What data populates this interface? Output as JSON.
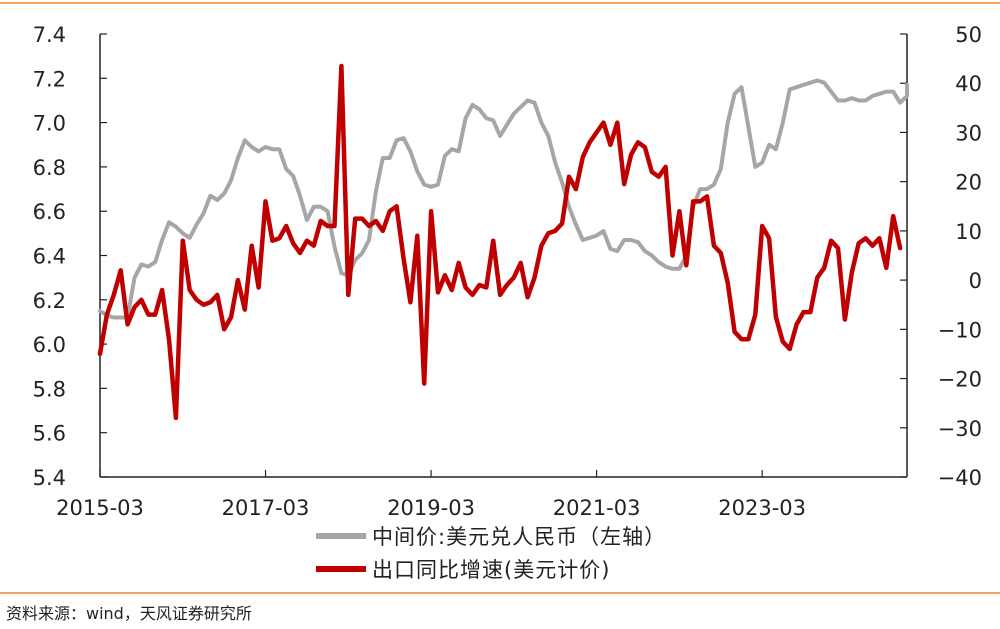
{
  "colors": {
    "rate_series": "#a6a6a6",
    "export_series": "#c00000",
    "rule": "#f4a460",
    "axis": "#222222"
  },
  "source_note": "资料来源：wind，天风证券研究所",
  "chart_data": {
    "type": "line",
    "title": "",
    "x_axis": {
      "type": "date",
      "range": [
        "2015-03",
        "2024-12"
      ],
      "tick_labels": [
        "2015-03",
        "2017-03",
        "2019-03",
        "2021-03",
        "2023-03"
      ]
    },
    "y_left": {
      "range": [
        5.4,
        7.4
      ],
      "tick_labels": [
        "5.4",
        "5.6",
        "5.8",
        "6.0",
        "6.2",
        "6.4",
        "6.6",
        "6.8",
        "7.0",
        "7.2",
        "7.4"
      ]
    },
    "y_right": {
      "range": [
        -40,
        50
      ],
      "tick_labels": [
        "−40",
        "−30",
        "−20",
        "−10",
        "0",
        "10",
        "20",
        "30",
        "40",
        "50"
      ]
    },
    "grid": false,
    "legend_position": "bottom",
    "series": [
      {
        "name": "中间价:美元兑人民币（左轴）",
        "axis": "left",
        "color": "#a6a6a6",
        "points": [
          [
            "2015-03",
            6.15
          ],
          [
            "2015-04",
            6.13
          ],
          [
            "2015-05",
            6.12
          ],
          [
            "2015-06",
            6.12
          ],
          [
            "2015-07",
            6.12
          ],
          [
            "2015-08",
            6.3
          ],
          [
            "2015-09",
            6.36
          ],
          [
            "2015-10",
            6.35
          ],
          [
            "2015-11",
            6.37
          ],
          [
            "2015-12",
            6.47
          ],
          [
            "2016-01",
            6.55
          ],
          [
            "2016-02",
            6.53
          ],
          [
            "2016-03",
            6.5
          ],
          [
            "2016-04",
            6.48
          ],
          [
            "2016-05",
            6.54
          ],
          [
            "2016-06",
            6.59
          ],
          [
            "2016-07",
            6.67
          ],
          [
            "2016-08",
            6.65
          ],
          [
            "2016-09",
            6.68
          ],
          [
            "2016-10",
            6.74
          ],
          [
            "2016-11",
            6.84
          ],
          [
            "2016-12",
            6.92
          ],
          [
            "2017-01",
            6.89
          ],
          [
            "2017-02",
            6.87
          ],
          [
            "2017-03",
            6.89
          ],
          [
            "2017-04",
            6.88
          ],
          [
            "2017-05",
            6.88
          ],
          [
            "2017-06",
            6.79
          ],
          [
            "2017-07",
            6.76
          ],
          [
            "2017-08",
            6.67
          ],
          [
            "2017-09",
            6.56
          ],
          [
            "2017-10",
            6.62
          ],
          [
            "2017-11",
            6.62
          ],
          [
            "2017-12",
            6.6
          ],
          [
            "2018-01",
            6.44
          ],
          [
            "2018-02",
            6.32
          ],
          [
            "2018-03",
            6.31
          ],
          [
            "2018-04",
            6.38
          ],
          [
            "2018-05",
            6.41
          ],
          [
            "2018-06",
            6.47
          ],
          [
            "2018-07",
            6.69
          ],
          [
            "2018-08",
            6.84
          ],
          [
            "2018-09",
            6.84
          ],
          [
            "2018-10",
            6.92
          ],
          [
            "2018-11",
            6.93
          ],
          [
            "2018-12",
            6.87
          ],
          [
            "2019-01",
            6.78
          ],
          [
            "2019-02",
            6.72
          ],
          [
            "2019-03",
            6.71
          ],
          [
            "2019-04",
            6.72
          ],
          [
            "2019-05",
            6.85
          ],
          [
            "2019-06",
            6.88
          ],
          [
            "2019-07",
            6.87
          ],
          [
            "2019-08",
            7.02
          ],
          [
            "2019-09",
            7.08
          ],
          [
            "2019-10",
            7.06
          ],
          [
            "2019-11",
            7.02
          ],
          [
            "2019-12",
            7.01
          ],
          [
            "2020-01",
            6.94
          ],
          [
            "2020-02",
            6.99
          ],
          [
            "2020-03",
            7.04
          ],
          [
            "2020-04",
            7.07
          ],
          [
            "2020-05",
            7.1
          ],
          [
            "2020-06",
            7.09
          ],
          [
            "2020-07",
            7.0
          ],
          [
            "2020-08",
            6.94
          ],
          [
            "2020-09",
            6.82
          ],
          [
            "2020-10",
            6.73
          ],
          [
            "2020-11",
            6.62
          ],
          [
            "2020-12",
            6.54
          ],
          [
            "2021-01",
            6.47
          ],
          [
            "2021-02",
            6.48
          ],
          [
            "2021-03",
            6.49
          ],
          [
            "2021-04",
            6.51
          ],
          [
            "2021-05",
            6.43
          ],
          [
            "2021-06",
            6.42
          ],
          [
            "2021-07",
            6.47
          ],
          [
            "2021-08",
            6.47
          ],
          [
            "2021-09",
            6.46
          ],
          [
            "2021-10",
            6.42
          ],
          [
            "2021-11",
            6.4
          ],
          [
            "2021-12",
            6.37
          ],
          [
            "2022-01",
            6.35
          ],
          [
            "2022-02",
            6.34
          ],
          [
            "2022-03",
            6.34
          ],
          [
            "2022-04",
            6.4
          ],
          [
            "2022-05",
            6.62
          ],
          [
            "2022-06",
            6.7
          ],
          [
            "2022-07",
            6.7
          ],
          [
            "2022-08",
            6.72
          ],
          [
            "2022-09",
            6.79
          ],
          [
            "2022-10",
            7.0
          ],
          [
            "2022-11",
            7.13
          ],
          [
            "2022-12",
            7.16
          ],
          [
            "2023-01",
            6.98
          ],
          [
            "2023-02",
            6.8
          ],
          [
            "2023-03",
            6.82
          ],
          [
            "2023-04",
            6.9
          ],
          [
            "2023-05",
            6.88
          ],
          [
            "2023-06",
            7.0
          ],
          [
            "2023-07",
            7.15
          ],
          [
            "2023-08",
            7.16
          ],
          [
            "2023-09",
            7.17
          ],
          [
            "2023-10",
            7.18
          ],
          [
            "2023-11",
            7.19
          ],
          [
            "2023-12",
            7.18
          ],
          [
            "2024-01",
            7.14
          ],
          [
            "2024-02",
            7.1
          ],
          [
            "2024-03",
            7.1
          ],
          [
            "2024-04",
            7.11
          ],
          [
            "2024-05",
            7.1
          ],
          [
            "2024-06",
            7.1
          ],
          [
            "2024-07",
            7.12
          ],
          [
            "2024-08",
            7.13
          ],
          [
            "2024-09",
            7.14
          ],
          [
            "2024-10",
            7.14
          ],
          [
            "2024-11",
            7.09
          ],
          [
            "2024-12",
            7.12
          ],
          [
            "2025-01",
            7.17
          ]
        ]
      },
      {
        "name": "出口同比增速(美元计价)",
        "axis": "right",
        "color": "#c00000",
        "points": [
          [
            "2015-03",
            -15.0
          ],
          [
            "2015-04",
            -7.0
          ],
          [
            "2015-05",
            -3.0
          ],
          [
            "2015-06",
            2.0
          ],
          [
            "2015-07",
            -9.0
          ],
          [
            "2015-08",
            -5.5
          ],
          [
            "2015-09",
            -4.0
          ],
          [
            "2015-10",
            -7.0
          ],
          [
            "2015-11",
            -7.0
          ],
          [
            "2015-12",
            -2.0
          ],
          [
            "2016-01",
            -12.0
          ],
          [
            "2016-02",
            -28.0
          ],
          [
            "2016-03",
            8.0
          ],
          [
            "2016-04",
            -2.0
          ],
          [
            "2016-05",
            -4.0
          ],
          [
            "2016-06",
            -5.0
          ],
          [
            "2016-07",
            -4.5
          ],
          [
            "2016-08",
            -3.0
          ],
          [
            "2016-09",
            -10.0
          ],
          [
            "2016-10",
            -7.5
          ],
          [
            "2016-11",
            0.0
          ],
          [
            "2016-12",
            -6.0
          ],
          [
            "2017-01",
            7.0
          ],
          [
            "2017-02",
            -1.5
          ],
          [
            "2017-03",
            16.0
          ],
          [
            "2017-04",
            8.0
          ],
          [
            "2017-05",
            8.5
          ],
          [
            "2017-06",
            11.0
          ],
          [
            "2017-07",
            7.5
          ],
          [
            "2017-08",
            5.5
          ],
          [
            "2017-09",
            8.0
          ],
          [
            "2017-10",
            7.0
          ],
          [
            "2017-11",
            12.0
          ],
          [
            "2017-12",
            11.0
          ],
          [
            "2018-01",
            11.0
          ],
          [
            "2018-02",
            43.5
          ],
          [
            "2018-03",
            -3.0
          ],
          [
            "2018-04",
            12.5
          ],
          [
            "2018-05",
            12.5
          ],
          [
            "2018-06",
            11.0
          ],
          [
            "2018-07",
            12.0
          ],
          [
            "2018-08",
            10.0
          ],
          [
            "2018-09",
            14.0
          ],
          [
            "2018-10",
            15.0
          ],
          [
            "2018-11",
            4.5
          ],
          [
            "2018-12",
            -4.5
          ],
          [
            "2019-01",
            9.0
          ],
          [
            "2019-02",
            -21.0
          ],
          [
            "2019-03",
            14.0
          ],
          [
            "2019-04",
            -2.5
          ],
          [
            "2019-05",
            1.0
          ],
          [
            "2019-06",
            -2.0
          ],
          [
            "2019-07",
            3.5
          ],
          [
            "2019-08",
            -1.5
          ],
          [
            "2019-09",
            -3.0
          ],
          [
            "2019-10",
            -1.0
          ],
          [
            "2019-11",
            -1.5
          ],
          [
            "2019-12",
            8.0
          ],
          [
            "2020-01",
            -3.0
          ],
          [
            "2020-02",
            -1.0
          ],
          [
            "2020-03",
            0.5
          ],
          [
            "2020-04",
            3.5
          ],
          [
            "2020-05",
            -3.5
          ],
          [
            "2020-06",
            0.5
          ],
          [
            "2020-07",
            7.0
          ],
          [
            "2020-08",
            9.5
          ],
          [
            "2020-09",
            10.0
          ],
          [
            "2020-10",
            11.5
          ],
          [
            "2020-11",
            21.0
          ],
          [
            "2020-12",
            18.5
          ],
          [
            "2021-01",
            25.0
          ],
          [
            "2021-02",
            28.0
          ],
          [
            "2021-03",
            30.0
          ],
          [
            "2021-04",
            32.0
          ],
          [
            "2021-05",
            27.5
          ],
          [
            "2021-06",
            32.0
          ],
          [
            "2021-07",
            19.5
          ],
          [
            "2021-08",
            25.5
          ],
          [
            "2021-09",
            28.0
          ],
          [
            "2021-10",
            27.0
          ],
          [
            "2021-11",
            22.0
          ],
          [
            "2021-12",
            21.0
          ],
          [
            "2022-01",
            23.0
          ],
          [
            "2022-02",
            5.0
          ],
          [
            "2022-03",
            14.0
          ],
          [
            "2022-04",
            3.0
          ],
          [
            "2022-05",
            16.0
          ],
          [
            "2022-06",
            16.0
          ],
          [
            "2022-07",
            17.0
          ],
          [
            "2022-08",
            7.0
          ],
          [
            "2022-09",
            5.5
          ],
          [
            "2022-10",
            -0.5
          ],
          [
            "2022-11",
            -10.5
          ],
          [
            "2022-12",
            -12.0
          ],
          [
            "2023-01",
            -12.0
          ],
          [
            "2023-02",
            -7.0
          ],
          [
            "2023-03",
            11.0
          ],
          [
            "2023-04",
            8.5
          ],
          [
            "2023-05",
            -7.5
          ],
          [
            "2023-06",
            -12.5
          ],
          [
            "2023-07",
            -14.0
          ],
          [
            "2023-08",
            -9.0
          ],
          [
            "2023-09",
            -6.5
          ],
          [
            "2023-10",
            -6.5
          ],
          [
            "2023-11",
            0.5
          ],
          [
            "2023-12",
            2.5
          ],
          [
            "2024-01",
            8.0
          ],
          [
            "2024-02",
            6.5
          ],
          [
            "2024-03",
            -8.0
          ],
          [
            "2024-04",
            1.5
          ],
          [
            "2024-05",
            7.5
          ],
          [
            "2024-06",
            8.5
          ],
          [
            "2024-07",
            7.0
          ],
          [
            "2024-08",
            8.5
          ],
          [
            "2024-09",
            2.5
          ],
          [
            "2024-10",
            13.0
          ],
          [
            "2024-11",
            6.5
          ]
        ]
      }
    ]
  }
}
